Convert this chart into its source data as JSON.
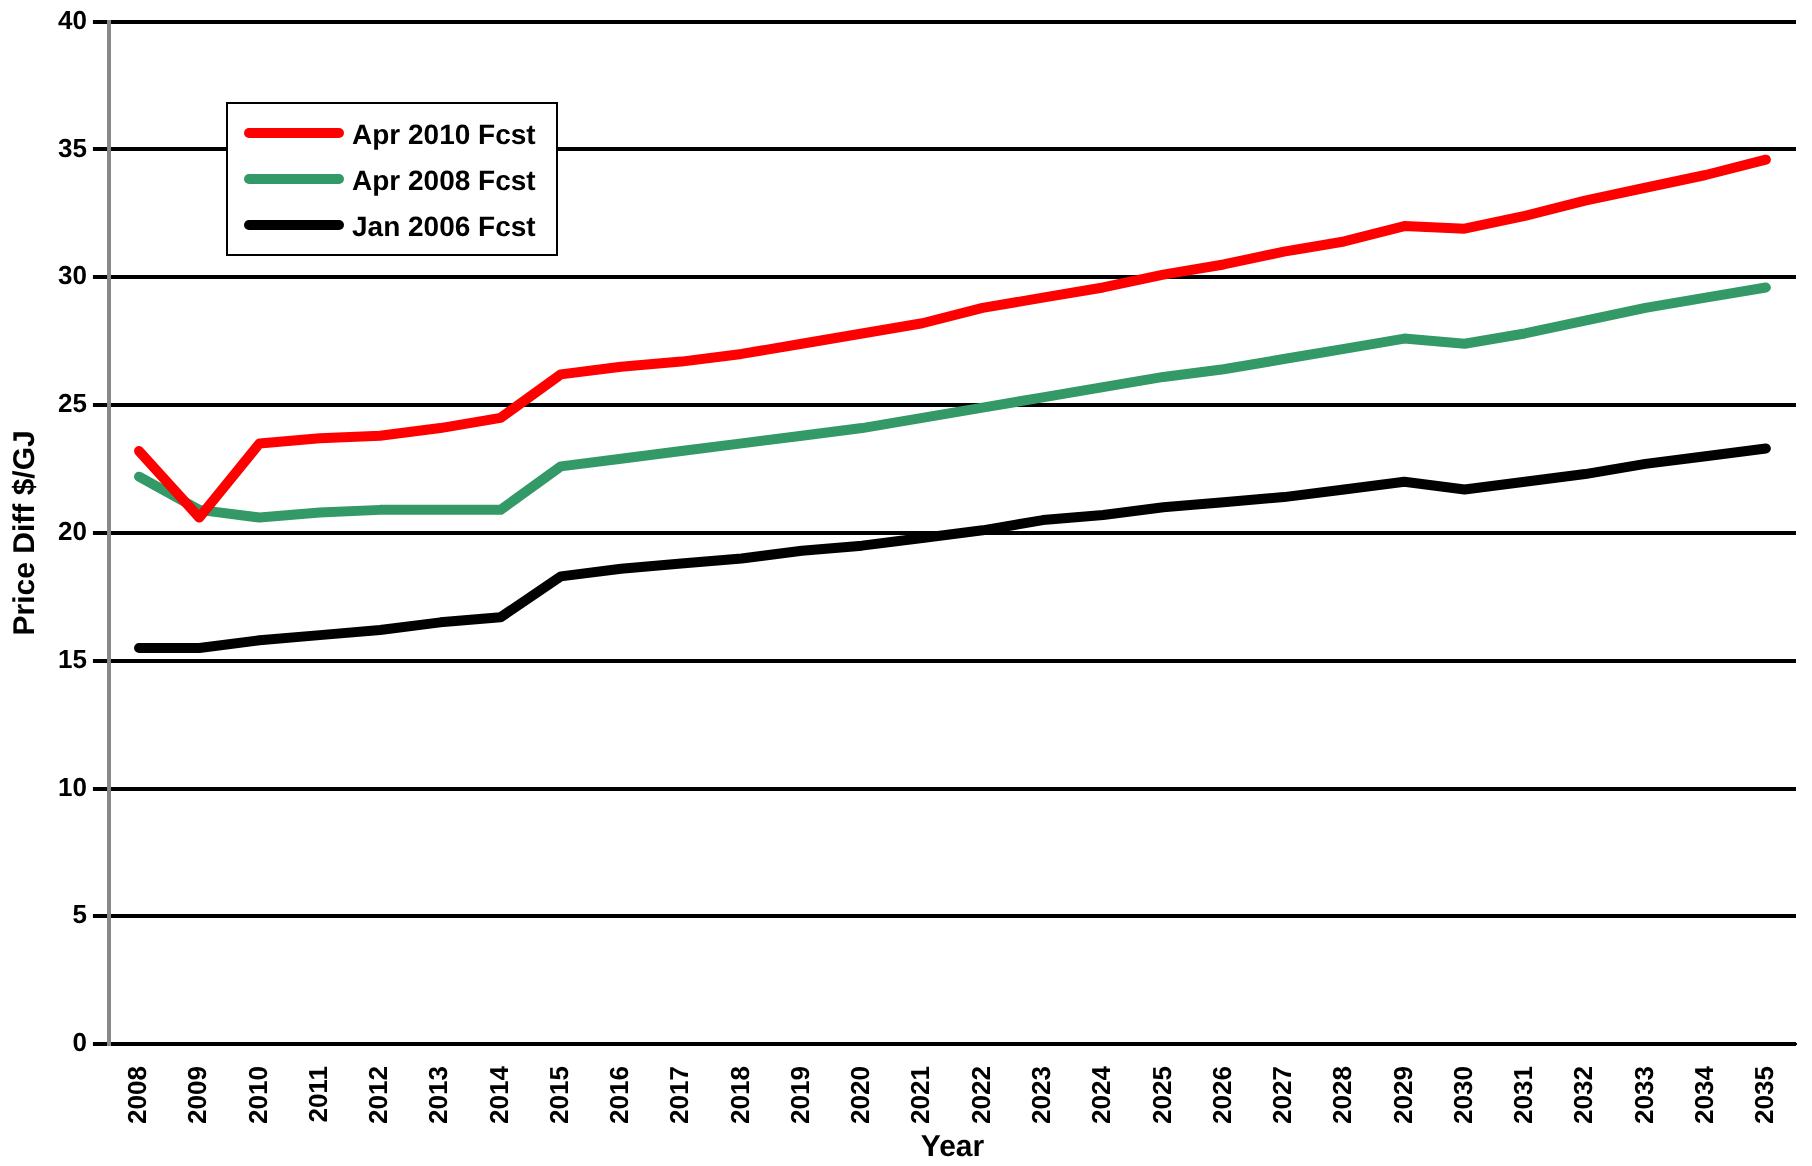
{
  "chart_data": {
    "type": "line",
    "xlabel": "Year",
    "ylabel": "Price Diff $/GJ",
    "categories": [
      "2008",
      "2009",
      "2010",
      "2011",
      "2012",
      "2013",
      "2014",
      "2015",
      "2016",
      "2017",
      "2018",
      "2019",
      "2020",
      "2021",
      "2022",
      "2023",
      "2024",
      "2025",
      "2026",
      "2027",
      "2028",
      "2029",
      "2030",
      "2031",
      "2032",
      "2033",
      "2034",
      "2035"
    ],
    "series": [
      {
        "name": "Apr 2010 Fcst",
        "color": "#ff0000",
        "values": [
          23.2,
          20.6,
          23.5,
          23.7,
          23.8,
          24.1,
          24.5,
          26.2,
          26.5,
          26.7,
          27.0,
          27.4,
          27.8,
          28.2,
          28.8,
          29.2,
          29.6,
          30.1,
          30.5,
          31.0,
          31.4,
          32.0,
          31.9,
          32.4,
          33.0,
          33.5,
          34.0,
          34.6
        ]
      },
      {
        "name": "Apr 2008 Fcst",
        "color": "#339966",
        "values": [
          22.2,
          20.9,
          20.6,
          20.8,
          20.9,
          20.9,
          20.9,
          22.6,
          22.9,
          23.2,
          23.5,
          23.8,
          24.1,
          24.5,
          24.9,
          25.3,
          25.7,
          26.1,
          26.4,
          26.8,
          27.2,
          27.6,
          27.4,
          27.8,
          28.3,
          28.8,
          29.2,
          29.6
        ]
      },
      {
        "name": "Jan 2006 Fcst",
        "color": "#000000",
        "values": [
          15.5,
          15.5,
          15.8,
          16.0,
          16.2,
          16.5,
          16.7,
          18.3,
          18.6,
          18.8,
          19.0,
          19.3,
          19.5,
          19.8,
          20.1,
          20.5,
          20.7,
          21.0,
          21.2,
          21.4,
          21.7,
          22.0,
          21.7,
          22.0,
          22.3,
          22.7,
          23.0,
          23.3
        ]
      }
    ],
    "ylim": [
      0,
      40
    ],
    "yticks": [
      0,
      5,
      10,
      15,
      20,
      25,
      30,
      35,
      40
    ],
    "grid": "y",
    "legend": "top left",
    "marker": "none",
    "line_style": "solid"
  }
}
